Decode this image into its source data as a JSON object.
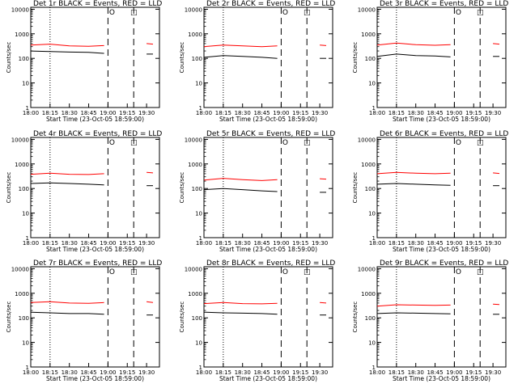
{
  "colors": {
    "events": "#000000",
    "lld": "#ff0000",
    "axis": "#000000",
    "background": "#ffffff"
  },
  "common": {
    "xlabel": "Start Time (23-Oct-05 18:59:00)",
    "ylabel": "Counts/sec",
    "xtick_labels": [
      "18:00",
      "18:15",
      "18:30",
      "18:45",
      "19:00",
      "19:15",
      "19:30"
    ],
    "ytick_labels": [
      "1",
      "10",
      "100",
      "1000",
      "10000"
    ],
    "ylim": [
      1,
      12000
    ],
    "yscale": "log",
    "marker_circle_label": "O",
    "marker_square_label": "□"
  },
  "chart_data": [
    {
      "type": "line",
      "title": "Det 1r BLACK = Events, RED = LLD",
      "x": [
        "18:00",
        "18:15",
        "18:30",
        "18:45",
        "18:57",
        "19:00",
        "19:15",
        "19:30",
        "19:35"
      ],
      "series": [
        {
          "name": "Events",
          "values": [
            200,
            190,
            180,
            175,
            160,
            null,
            null,
            150,
            150
          ]
        },
        {
          "name": "LLD",
          "values": [
            350,
            380,
            320,
            310,
            330,
            null,
            null,
            400,
            380
          ]
        }
      ],
      "dotted_lines": [
        "18:15"
      ],
      "dashed_lines": [
        "19:00",
        "19:20"
      ]
    },
    {
      "type": "line",
      "title": "Det 2r BLACK = Events, RED = LLD",
      "x": [
        "18:00",
        "18:15",
        "18:30",
        "18:45",
        "18:57",
        "19:00",
        "19:15",
        "19:30",
        "19:35"
      ],
      "series": [
        {
          "name": "Events",
          "values": [
            110,
            130,
            120,
            110,
            100,
            null,
            null,
            100,
            100
          ]
        },
        {
          "name": "LLD",
          "values": [
            300,
            350,
            320,
            300,
            320,
            null,
            null,
            350,
            330
          ]
        }
      ],
      "dotted_lines": [
        "18:15"
      ],
      "dashed_lines": [
        "19:00",
        "19:20"
      ]
    },
    {
      "type": "line",
      "title": "Det 3r BLACK = Events, RED = LLD",
      "x": [
        "18:00",
        "18:15",
        "18:30",
        "18:45",
        "18:57",
        "19:00",
        "19:15",
        "19:30",
        "19:35"
      ],
      "series": [
        {
          "name": "Events",
          "values": [
            120,
            150,
            130,
            125,
            115,
            null,
            null,
            120,
            120
          ]
        },
        {
          "name": "LLD",
          "values": [
            350,
            420,
            360,
            340,
            360,
            null,
            null,
            400,
            380
          ]
        }
      ],
      "dotted_lines": [
        "18:15"
      ],
      "dashed_lines": [
        "19:00",
        "19:20"
      ]
    },
    {
      "type": "line",
      "title": "Det 4r BLACK = Events, RED = LLD",
      "x": [
        "18:00",
        "18:15",
        "18:30",
        "18:45",
        "18:57",
        "19:00",
        "19:15",
        "19:30",
        "19:35"
      ],
      "series": [
        {
          "name": "Events",
          "values": [
            160,
            170,
            160,
            150,
            140,
            null,
            null,
            130,
            130
          ]
        },
        {
          "name": "LLD",
          "values": [
            380,
            420,
            380,
            370,
            400,
            null,
            null,
            450,
            430
          ]
        }
      ],
      "dotted_lines": [
        "18:15"
      ],
      "dashed_lines": [
        "19:00",
        "19:20"
      ]
    },
    {
      "type": "line",
      "title": "Det 5r BLACK = Events, RED = LLD",
      "x": [
        "18:00",
        "18:15",
        "18:30",
        "18:45",
        "18:57",
        "19:00",
        "19:15",
        "19:30",
        "19:35"
      ],
      "series": [
        {
          "name": "Events",
          "values": [
            90,
            100,
            90,
            80,
            75,
            null,
            null,
            70,
            70
          ]
        },
        {
          "name": "LLD",
          "values": [
            220,
            260,
            230,
            210,
            230,
            null,
            null,
            250,
            240
          ]
        }
      ],
      "dotted_lines": [
        "18:15"
      ],
      "dashed_lines": [
        "19:00",
        "19:20"
      ]
    },
    {
      "type": "line",
      "title": "Det 6r BLACK = Events, RED = LLD",
      "x": [
        "18:00",
        "18:15",
        "18:30",
        "18:45",
        "18:57",
        "19:00",
        "19:15",
        "19:30",
        "19:35"
      ],
      "series": [
        {
          "name": "Events",
          "values": [
            150,
            160,
            150,
            140,
            135,
            null,
            null,
            130,
            130
          ]
        },
        {
          "name": "LLD",
          "values": [
            400,
            450,
            420,
            400,
            420,
            null,
            null,
            430,
            410
          ]
        }
      ],
      "dotted_lines": [
        "18:15"
      ],
      "dashed_lines": [
        "19:00",
        "19:20"
      ]
    },
    {
      "type": "line",
      "title": "Det 7r BLACK = Events, RED = LLD",
      "x": [
        "18:00",
        "18:15",
        "18:30",
        "18:45",
        "18:57",
        "19:00",
        "19:15",
        "19:30",
        "19:35"
      ],
      "series": [
        {
          "name": "Events",
          "values": [
            170,
            160,
            150,
            150,
            140,
            null,
            null,
            130,
            130
          ]
        },
        {
          "name": "LLD",
          "values": [
            420,
            450,
            400,
            390,
            420,
            null,
            null,
            450,
            420
          ]
        }
      ],
      "dotted_lines": [
        "18:15"
      ],
      "dashed_lines": [
        "19:00",
        "19:20"
      ]
    },
    {
      "type": "line",
      "title": "Det 8r BLACK = Events, RED = LLD",
      "x": [
        "18:00",
        "18:15",
        "18:30",
        "18:45",
        "18:57",
        "19:00",
        "19:15",
        "19:30",
        "19:35"
      ],
      "series": [
        {
          "name": "Events",
          "values": [
            170,
            160,
            155,
            150,
            140,
            null,
            null,
            130,
            130
          ]
        },
        {
          "name": "LLD",
          "values": [
            380,
            420,
            380,
            370,
            390,
            null,
            null,
            420,
            400
          ]
        }
      ],
      "dotted_lines": [
        "18:15"
      ],
      "dashed_lines": [
        "19:00",
        "19:20"
      ]
    },
    {
      "type": "line",
      "title": "Det 9r BLACK = Events, RED = LLD",
      "x": [
        "18:00",
        "18:15",
        "18:30",
        "18:45",
        "18:57",
        "19:00",
        "19:15",
        "19:30",
        "19:35"
      ],
      "series": [
        {
          "name": "Events",
          "values": [
            150,
            160,
            155,
            150,
            145,
            null,
            null,
            140,
            140
          ]
        },
        {
          "name": "LLD",
          "values": [
            300,
            340,
            330,
            320,
            330,
            null,
            null,
            360,
            350
          ]
        }
      ],
      "dotted_lines": [
        "18:15"
      ],
      "dashed_lines": [
        "19:00",
        "19:20"
      ]
    }
  ]
}
